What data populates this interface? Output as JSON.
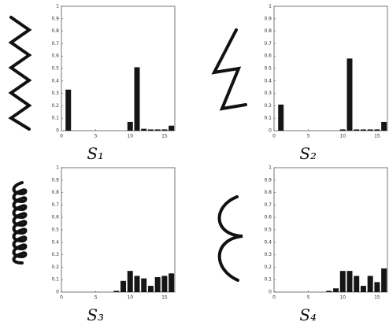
{
  "chart_data": [
    {
      "type": "bar",
      "label": "S₁",
      "color": "#151515",
      "x": [
        1,
        2,
        3,
        4,
        5,
        6,
        7,
        8,
        9,
        10,
        11,
        12,
        13,
        14,
        15,
        16
      ],
      "values": [
        0.33,
        0,
        0,
        0,
        0,
        0,
        0,
        0,
        0,
        0.07,
        0.51,
        0.015,
        0.01,
        0.01,
        0.01,
        0.04
      ],
      "xlim": [
        0,
        16.5
      ],
      "ylim": [
        0,
        1
      ],
      "xticks": [
        0,
        5,
        10,
        15
      ],
      "yticks": [
        0,
        0.1,
        0.2,
        0.3,
        0.4,
        0.5,
        0.6,
        0.7,
        0.8,
        0.9,
        1
      ]
    },
    {
      "type": "bar",
      "label": "S₂",
      "color": "#151515",
      "x": [
        1,
        2,
        3,
        4,
        5,
        6,
        7,
        8,
        9,
        10,
        11,
        12,
        13,
        14,
        15,
        16
      ],
      "values": [
        0.21,
        0,
        0,
        0,
        0,
        0,
        0,
        0,
        0,
        0.01,
        0.58,
        0.01,
        0.01,
        0.01,
        0.01,
        0.07
      ],
      "xlim": [
        0,
        16.5
      ],
      "ylim": [
        0,
        1
      ],
      "xticks": [
        0,
        5,
        10,
        15
      ],
      "yticks": [
        0,
        0.1,
        0.2,
        0.3,
        0.4,
        0.5,
        0.6,
        0.7,
        0.8,
        0.9,
        1
      ]
    },
    {
      "type": "bar",
      "label": "S₃",
      "color": "#151515",
      "x": [
        1,
        2,
        3,
        4,
        5,
        6,
        7,
        8,
        9,
        10,
        11,
        12,
        13,
        14,
        15,
        16
      ],
      "values": [
        0,
        0,
        0,
        0,
        0,
        0,
        0,
        0.01,
        0.09,
        0.17,
        0.13,
        0.11,
        0.05,
        0.12,
        0.13,
        0.15
      ],
      "xlim": [
        0,
        16.5
      ],
      "ylim": [
        0,
        1
      ],
      "xticks": [
        0,
        5,
        10,
        15
      ],
      "yticks": [
        0,
        0.1,
        0.2,
        0.3,
        0.4,
        0.5,
        0.6,
        0.7,
        0.8,
        0.9,
        1
      ]
    },
    {
      "type": "bar",
      "label": "S₄",
      "color": "#151515",
      "x": [
        1,
        2,
        3,
        4,
        5,
        6,
        7,
        8,
        9,
        10,
        11,
        12,
        13,
        14,
        15,
        16
      ],
      "values": [
        0,
        0,
        0,
        0,
        0,
        0,
        0,
        0.01,
        0.03,
        0.17,
        0.17,
        0.13,
        0.05,
        0.13,
        0.08,
        0.19
      ],
      "xlim": [
        0,
        16.5
      ],
      "ylim": [
        0,
        1
      ],
      "xticks": [
        0,
        5,
        10,
        15
      ],
      "yticks": [
        0,
        0.1,
        0.2,
        0.3,
        0.4,
        0.5,
        0.6,
        0.7,
        0.8,
        0.9,
        1
      ]
    }
  ]
}
